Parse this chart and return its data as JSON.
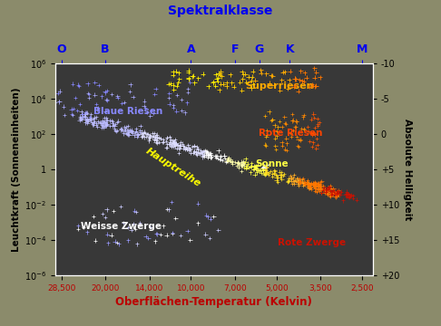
{
  "bg_outer": "#8b8b6b",
  "bg_plot": "#383838",
  "title": "Spektralklasse",
  "title_color": "#0000ee",
  "xlabel": "Oberflächen-Temperatur (Kelvin)",
  "xlabel_color": "#bb0000",
  "ylabel_left": "Leuchtkraft (Sonneneinheiten)",
  "ylabel_right": "Absolute Helligkeit",
  "spectral_classes": [
    "O",
    "B",
    "A",
    "F",
    "G",
    "K",
    "M"
  ],
  "spectral_temps": [
    28500,
    20000,
    10000,
    7000,
    5750,
    4500,
    2500
  ],
  "spectral_color": "#0000ee",
  "xtick_vals": [
    28500,
    20000,
    14000,
    10000,
    7000,
    5000,
    3500,
    2500
  ],
  "xtick_labels": [
    "28,500",
    "20,000",
    "14,000",
    "10,000",
    "7,000",
    "5,000",
    "3,500",
    "2,500"
  ],
  "ytick_vals": [
    1000000.0,
    10000.0,
    100.0,
    1.0,
    0.01,
    0.0001,
    1e-06
  ],
  "ytick_labels": [
    "10⁶",
    "10⁴",
    "10²",
    "1",
    "10⁻²",
    "10⁻⁴",
    "10⁻⁶"
  ],
  "mag_lum": [
    1000000,
    10000,
    100,
    1,
    0.01,
    0.0001,
    1e-06
  ],
  "mag_labels": [
    "-10",
    "-5",
    "0",
    "+5",
    "+10",
    "+15",
    "+20"
  ],
  "xlim": [
    30000,
    2300
  ],
  "ylim": [
    1e-06,
    1000000.0
  ],
  "seed": 42
}
